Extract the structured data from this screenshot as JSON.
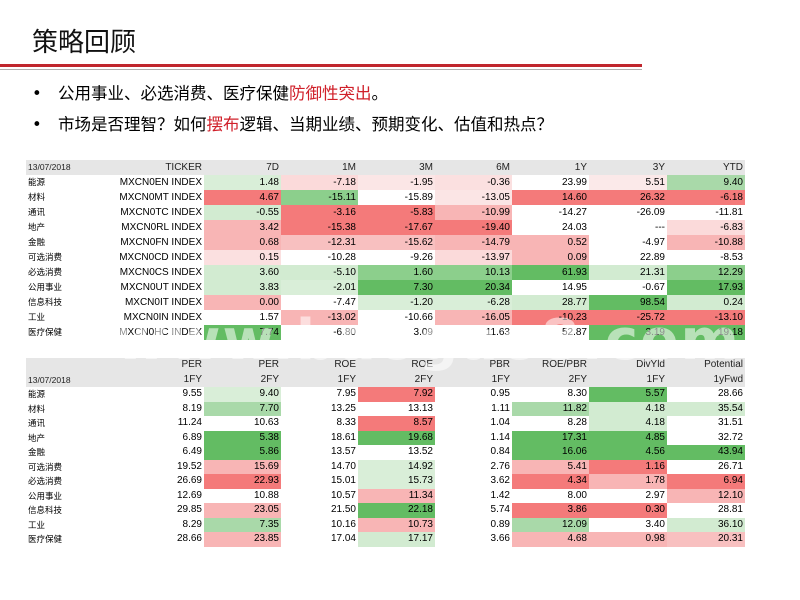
{
  "title": "策略回顾",
  "bullets": [
    {
      "pre": "公用事业、必选消费、医疗保健",
      "hl": "防御性突出",
      "post": "。"
    },
    {
      "pre": "市场是否理智？如何",
      "hl": "摆布",
      "post": "逻辑、当期业绩、预期变化、估值和热点？"
    }
  ],
  "bullet_marker": "•",
  "table1": {
    "header": [
      "13/07/2018",
      "TICKER",
      "7D",
      "1M",
      "3M",
      "6M",
      "1Y",
      "3Y",
      "YTD"
    ],
    "rows": [
      {
        "name": "能源",
        "ticker": "MXCN0EN INDEX",
        "cells": [
          {
            "v": "1.48",
            "c": "#d9eed8"
          },
          {
            "v": "-7.18",
            "c": "#fbdada"
          },
          {
            "v": "-1.95",
            "c": "#fbe6e6"
          },
          {
            "v": "-0.36",
            "c": "#fbe0e0"
          },
          {
            "v": "23.99",
            "c": "#ffffff"
          },
          {
            "v": "5.51",
            "c": "#fbe9e9"
          },
          {
            "v": "9.40",
            "c": "#a9d9a9"
          }
        ]
      },
      {
        "name": "材料",
        "ticker": "MXCN0MT INDEX",
        "cells": [
          {
            "v": "4.67",
            "c": "#f47a7a"
          },
          {
            "v": "-15.11",
            "c": "#8ccf8c"
          },
          {
            "v": "-15.89",
            "c": "#ffffff"
          },
          {
            "v": "-13.05",
            "c": "#fbe5e5"
          },
          {
            "v": "14.60",
            "c": "#f47a7a"
          },
          {
            "v": "26.32",
            "c": "#f47a7a"
          },
          {
            "v": "-6.18",
            "c": "#f47a7a"
          }
        ]
      },
      {
        "name": "通讯",
        "ticker": "MXCN0TC INDEX",
        "cells": [
          {
            "v": "-0.55",
            "c": "#d2ebd1"
          },
          {
            "v": "-3.16",
            "c": "#f47a7a"
          },
          {
            "v": "-5.83",
            "c": "#f47a7a"
          },
          {
            "v": "-10.99",
            "c": "#f8b5b5"
          },
          {
            "v": "-14.27",
            "c": "#ffffff"
          },
          {
            "v": "-26.09",
            "c": "#ffffff"
          },
          {
            "v": "-11.81",
            "c": "#ffffff"
          }
        ]
      },
      {
        "name": "地产",
        "ticker": "MXCN0RL INDEX",
        "cells": [
          {
            "v": "3.42",
            "c": "#f8b5b5"
          },
          {
            "v": "-15.38",
            "c": "#f47a7a"
          },
          {
            "v": "-17.67",
            "c": "#f47a7a"
          },
          {
            "v": "-19.40",
            "c": "#f47a7a"
          },
          {
            "v": "24.03",
            "c": "#ffffff"
          },
          {
            "v": "---",
            "c": "#ffffff"
          },
          {
            "v": "-6.83",
            "c": "#fbdada"
          }
        ]
      },
      {
        "name": "金融",
        "ticker": "MXCN0FN INDEX",
        "cells": [
          {
            "v": "0.68",
            "c": "#f8b5b5"
          },
          {
            "v": "-12.31",
            "c": "#f8c0c0"
          },
          {
            "v": "-15.62",
            "c": "#f8c0c0"
          },
          {
            "v": "-14.79",
            "c": "#f8b5b5"
          },
          {
            "v": "0.52",
            "c": "#f8b5b5"
          },
          {
            "v": "-4.97",
            "c": "#ffffff"
          },
          {
            "v": "-10.88",
            "c": "#f8b5b5"
          }
        ]
      },
      {
        "name": "可选消费",
        "ticker": "MXCN0CD INDEX",
        "cells": [
          {
            "v": "0.15",
            "c": "#fbe0e0"
          },
          {
            "v": "-10.28",
            "c": "#ffffff"
          },
          {
            "v": "-9.26",
            "c": "#ffffff"
          },
          {
            "v": "-13.97",
            "c": "#fbdada"
          },
          {
            "v": "0.09",
            "c": "#f8b5b5"
          },
          {
            "v": "22.89",
            "c": "#ffffff"
          },
          {
            "v": "-8.53",
            "c": "#ffffff"
          }
        ]
      },
      {
        "name": "必选消费",
        "ticker": "MXCN0CS INDEX",
        "cells": [
          {
            "v": "3.60",
            "c": "#d2ebd1"
          },
          {
            "v": "-5.10",
            "c": "#d2ebd1"
          },
          {
            "v": "1.60",
            "c": "#8ccf8c"
          },
          {
            "v": "10.13",
            "c": "#8ccf8c"
          },
          {
            "v": "61.93",
            "c": "#63bc63"
          },
          {
            "v": "21.31",
            "c": "#d2ebd1"
          },
          {
            "v": "12.29",
            "c": "#8ccf8c"
          }
        ]
      },
      {
        "name": "公用事业",
        "ticker": "MXCN0UT INDEX",
        "cells": [
          {
            "v": "3.83",
            "c": "#d2ebd1"
          },
          {
            "v": "-2.01",
            "c": "#d9eed8"
          },
          {
            "v": "7.30",
            "c": "#63bc63"
          },
          {
            "v": "20.34",
            "c": "#63bc63"
          },
          {
            "v": "14.95",
            "c": "#ffffff"
          },
          {
            "v": "-0.67",
            "c": "#ffffff"
          },
          {
            "v": "17.93",
            "c": "#63bc63"
          }
        ]
      },
      {
        "name": "信息科技",
        "ticker": "MXCN0IT INDEX",
        "cells": [
          {
            "v": "0.00",
            "c": "#f8b5b5"
          },
          {
            "v": "-7.47",
            "c": "#ffffff"
          },
          {
            "v": "-1.20",
            "c": "#d9eed8"
          },
          {
            "v": "-6.28",
            "c": "#d9eed8"
          },
          {
            "v": "28.77",
            "c": "#d2ebd1"
          },
          {
            "v": "98.54",
            "c": "#63bc63"
          },
          {
            "v": "0.24",
            "c": "#d2ebd1"
          }
        ]
      },
      {
        "name": "工业",
        "ticker": "MXCN0IN INDEX",
        "cells": [
          {
            "v": "1.57",
            "c": "#ffffff"
          },
          {
            "v": "-13.02",
            "c": "#f8b5b5"
          },
          {
            "v": "-10.66",
            "c": "#ffffff"
          },
          {
            "v": "-16.05",
            "c": "#f8b5b5"
          },
          {
            "v": "-10.23",
            "c": "#f47a7a"
          },
          {
            "v": "-25.72",
            "c": "#f47a7a"
          },
          {
            "v": "-13.10",
            "c": "#f47a7a"
          }
        ]
      },
      {
        "name": "医疗保健",
        "ticker": "MXCN0HC INDEX",
        "cells": [
          {
            "v": "7.74",
            "c": "#63bc63"
          },
          {
            "v": "-6.80",
            "c": "#ffffff"
          },
          {
            "v": "3.09",
            "c": "#ffffff"
          },
          {
            "v": "11.63",
            "c": "#ffffff"
          },
          {
            "v": "52.87",
            "c": "#ffffff"
          },
          {
            "v": "3.19",
            "c": "#63bc63"
          },
          {
            "v": "19.18",
            "c": "#63bc63"
          }
        ]
      }
    ]
  },
  "table2": {
    "header1": [
      "",
      "PER",
      "PER",
      "ROE",
      "ROE",
      "PBR",
      "ROE/PBR",
      "DivYld",
      "Potential"
    ],
    "header2": [
      "13/07/2018",
      "1FY",
      "2FY",
      "1FY",
      "2FY",
      "1FY",
      "2FY",
      "1FY",
      "1yFwd"
    ],
    "rows": [
      {
        "name": "能源",
        "cells": [
          {
            "v": "9.55",
            "c": "#ffffff"
          },
          {
            "v": "9.40",
            "c": "#d9eed8"
          },
          {
            "v": "7.95",
            "c": "#ffffff"
          },
          {
            "v": "7.92",
            "c": "#f47a7a"
          },
          {
            "v": "0.95",
            "c": "#ffffff"
          },
          {
            "v": "8.30",
            "c": "#ffffff"
          },
          {
            "v": "5.57",
            "c": "#63bc63"
          },
          {
            "v": "28.66",
            "c": "#ffffff"
          }
        ]
      },
      {
        "name": "材料",
        "cells": [
          {
            "v": "8.19",
            "c": "#ffffff"
          },
          {
            "v": "7.70",
            "c": "#a9d9a9"
          },
          {
            "v": "13.25",
            "c": "#ffffff"
          },
          {
            "v": "13.13",
            "c": "#ffffff"
          },
          {
            "v": "1.11",
            "c": "#ffffff"
          },
          {
            "v": "11.82",
            "c": "#a9d9a9"
          },
          {
            "v": "4.18",
            "c": "#d2ebd1"
          },
          {
            "v": "35.54",
            "c": "#d2ebd1"
          }
        ]
      },
      {
        "name": "通讯",
        "cells": [
          {
            "v": "11.24",
            "c": "#ffffff"
          },
          {
            "v": "10.63",
            "c": "#ffffff"
          },
          {
            "v": "8.33",
            "c": "#ffffff"
          },
          {
            "v": "8.57",
            "c": "#f47a7a"
          },
          {
            "v": "1.04",
            "c": "#ffffff"
          },
          {
            "v": "8.28",
            "c": "#ffffff"
          },
          {
            "v": "4.18",
            "c": "#d2ebd1"
          },
          {
            "v": "31.51",
            "c": "#ffffff"
          }
        ]
      },
      {
        "name": "地产",
        "cells": [
          {
            "v": "6.89",
            "c": "#ffffff"
          },
          {
            "v": "5.38",
            "c": "#63bc63"
          },
          {
            "v": "18.61",
            "c": "#ffffff"
          },
          {
            "v": "19.68",
            "c": "#63bc63"
          },
          {
            "v": "1.14",
            "c": "#ffffff"
          },
          {
            "v": "17.31",
            "c": "#63bc63"
          },
          {
            "v": "4.85",
            "c": "#63bc63"
          },
          {
            "v": "32.72",
            "c": "#ffffff"
          }
        ]
      },
      {
        "name": "金融",
        "cells": [
          {
            "v": "6.49",
            "c": "#ffffff"
          },
          {
            "v": "5.86",
            "c": "#63bc63"
          },
          {
            "v": "13.57",
            "c": "#ffffff"
          },
          {
            "v": "13.52",
            "c": "#ffffff"
          },
          {
            "v": "0.84",
            "c": "#ffffff"
          },
          {
            "v": "16.06",
            "c": "#63bc63"
          },
          {
            "v": "4.56",
            "c": "#63bc63"
          },
          {
            "v": "43.94",
            "c": "#63bc63"
          }
        ]
      },
      {
        "name": "可选消费",
        "cells": [
          {
            "v": "19.52",
            "c": "#ffffff"
          },
          {
            "v": "15.69",
            "c": "#f8b5b5"
          },
          {
            "v": "14.70",
            "c": "#ffffff"
          },
          {
            "v": "14.92",
            "c": "#d9eed8"
          },
          {
            "v": "2.76",
            "c": "#ffffff"
          },
          {
            "v": "5.41",
            "c": "#f8b5b5"
          },
          {
            "v": "1.16",
            "c": "#f47a7a"
          },
          {
            "v": "26.71",
            "c": "#ffffff"
          }
        ]
      },
      {
        "name": "必选消费",
        "cells": [
          {
            "v": "26.69",
            "c": "#ffffff"
          },
          {
            "v": "22.93",
            "c": "#f47a7a"
          },
          {
            "v": "15.01",
            "c": "#ffffff"
          },
          {
            "v": "15.73",
            "c": "#d9eed8"
          },
          {
            "v": "3.62",
            "c": "#ffffff"
          },
          {
            "v": "4.34",
            "c": "#f47a7a"
          },
          {
            "v": "1.78",
            "c": "#f8b5b5"
          },
          {
            "v": "6.94",
            "c": "#f47a7a"
          }
        ]
      },
      {
        "name": "公用事业",
        "cells": [
          {
            "v": "12.69",
            "c": "#ffffff"
          },
          {
            "v": "10.88",
            "c": "#ffffff"
          },
          {
            "v": "10.57",
            "c": "#ffffff"
          },
          {
            "v": "11.34",
            "c": "#f8b5b5"
          },
          {
            "v": "1.42",
            "c": "#ffffff"
          },
          {
            "v": "8.00",
            "c": "#ffffff"
          },
          {
            "v": "2.97",
            "c": "#ffffff"
          },
          {
            "v": "12.10",
            "c": "#f8b5b5"
          }
        ]
      },
      {
        "name": "信息科技",
        "cells": [
          {
            "v": "29.85",
            "c": "#ffffff"
          },
          {
            "v": "23.05",
            "c": "#f8b5b5"
          },
          {
            "v": "21.50",
            "c": "#ffffff"
          },
          {
            "v": "22.18",
            "c": "#63bc63"
          },
          {
            "v": "5.74",
            "c": "#ffffff"
          },
          {
            "v": "3.86",
            "c": "#f47a7a"
          },
          {
            "v": "0.30",
            "c": "#f47a7a"
          },
          {
            "v": "28.81",
            "c": "#ffffff"
          }
        ]
      },
      {
        "name": "工业",
        "cells": [
          {
            "v": "8.29",
            "c": "#ffffff"
          },
          {
            "v": "7.35",
            "c": "#a9d9a9"
          },
          {
            "v": "10.16",
            "c": "#ffffff"
          },
          {
            "v": "10.73",
            "c": "#f8b5b5"
          },
          {
            "v": "0.89",
            "c": "#ffffff"
          },
          {
            "v": "12.09",
            "c": "#a9d9a9"
          },
          {
            "v": "3.40",
            "c": "#ffffff"
          },
          {
            "v": "36.10",
            "c": "#d2ebd1"
          }
        ]
      },
      {
        "name": "医疗保健",
        "cells": [
          {
            "v": "28.66",
            "c": "#ffffff"
          },
          {
            "v": "23.85",
            "c": "#f8b5b5"
          },
          {
            "v": "17.04",
            "c": "#ffffff"
          },
          {
            "v": "17.17",
            "c": "#d2ebd1"
          },
          {
            "v": "3.66",
            "c": "#ffffff"
          },
          {
            "v": "4.68",
            "c": "#f8b5b5"
          },
          {
            "v": "0.98",
            "c": "#f8b5b5"
          },
          {
            "v": "20.31",
            "c": "#f8c0c0"
          }
        ]
      }
    ]
  },
  "watermark": "www.baogao8.com"
}
